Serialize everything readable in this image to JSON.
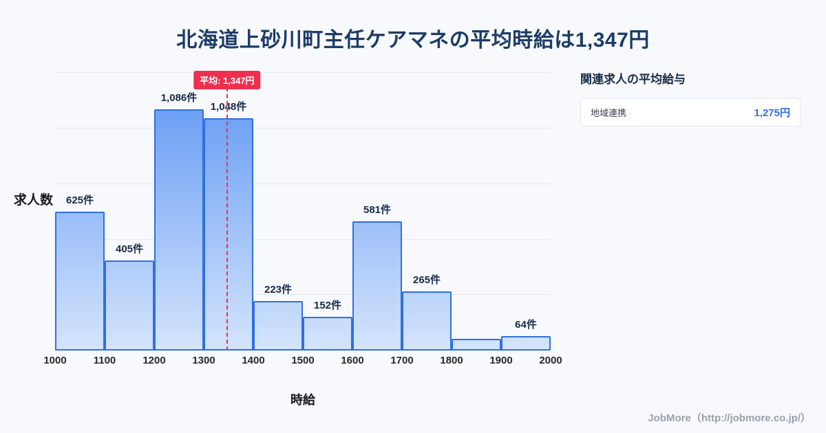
{
  "page": {
    "background": "#f7f9fc"
  },
  "header": {
    "title": "北海道上砂川町主任ケアマネの平均時給は1,347円"
  },
  "chart_data": {
    "type": "bar",
    "title": "北海道上砂川町主任ケアマネの平均時給は1,347円",
    "xlabel": "時給",
    "ylabel": "求人数",
    "unit": "件",
    "xlim": [
      1000,
      2000
    ],
    "ylim": [
      0,
      1270
    ],
    "x_ticks": [
      "1000",
      "1100",
      "1200",
      "1300",
      "1400",
      "1500",
      "1600",
      "1700",
      "1800",
      "1900",
      "2000"
    ],
    "categories": [
      "1000-1100",
      "1100-1200",
      "1200-1300",
      "1300-1400",
      "1400-1500",
      "1500-1600",
      "1600-1700",
      "1700-1800",
      "1800-1900",
      "1900-2000"
    ],
    "values": [
      625,
      405,
      1086,
      1048,
      223,
      152,
      581,
      265,
      53,
      64
    ],
    "labels": [
      "625件",
      "405件",
      "1,086件",
      "1,048件",
      "223件",
      "152件",
      "581件",
      "265件",
      "",
      "64件"
    ],
    "gridline_values": [
      250,
      500,
      750,
      1000,
      1250
    ],
    "grid": "horizontal",
    "legend": "none",
    "average": {
      "value": 1347,
      "label": "平均: 1,347円"
    },
    "colors": {
      "bar_top": "#5b94f3",
      "bar_bottom": "#d3e4fc",
      "bar_border": "#2f6fe3",
      "average_line": "#ee3050",
      "label": "#17294a"
    }
  },
  "side_panel": {
    "heading": "関連求人の平均給与",
    "value_color": "#2e6fe3",
    "rows": [
      {
        "label": "地域連携",
        "value": "1,275円"
      }
    ]
  },
  "footer": {
    "credit": "JobMore（http://jobmore.co.jp/）"
  }
}
